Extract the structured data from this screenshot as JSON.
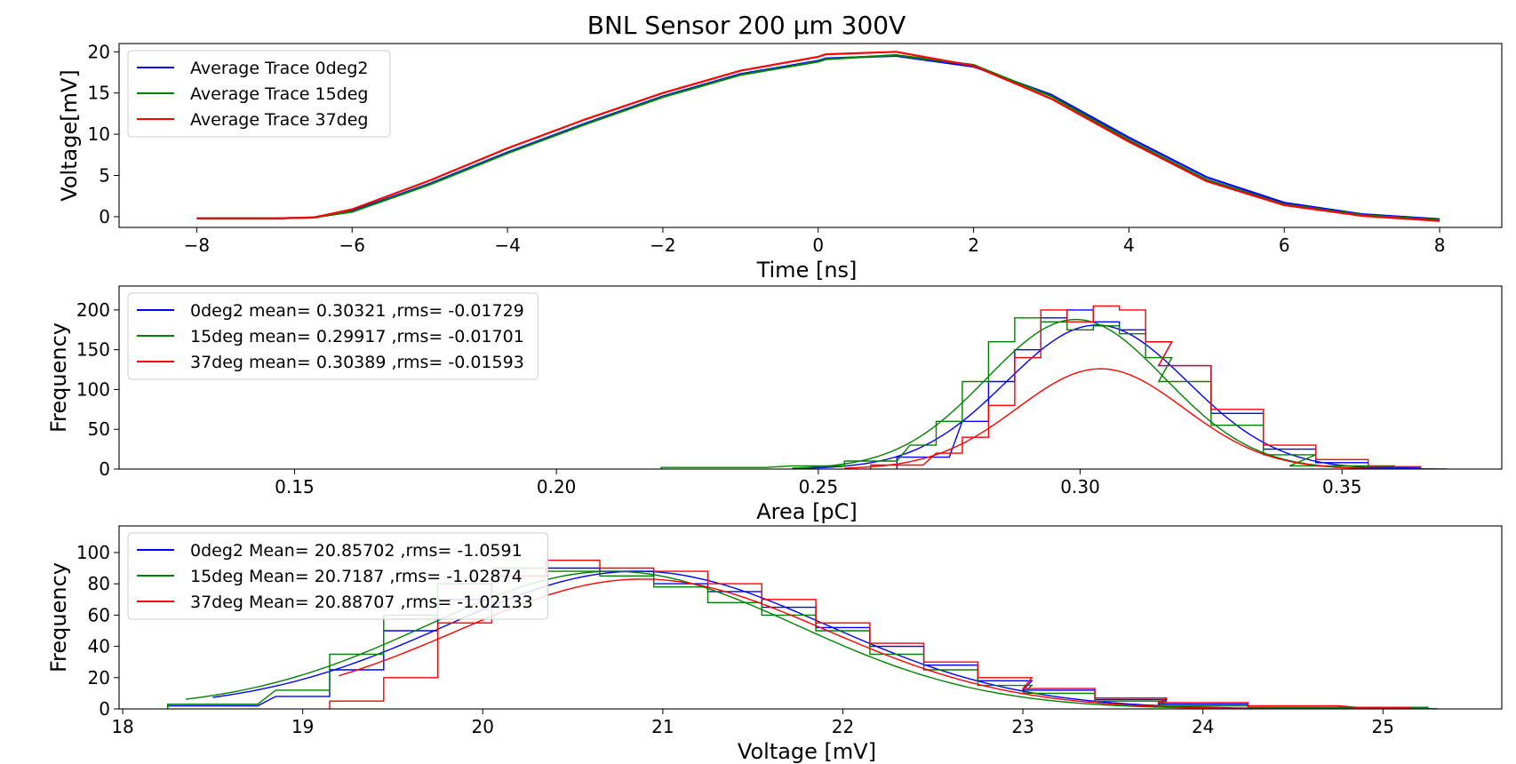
{
  "title": "BNL Sensor 200 µm 300V",
  "colors": {
    "blue": "#0000ff",
    "green": "#008000",
    "red": "#ff0000"
  },
  "chart_data": [
    {
      "type": "line",
      "xlabel": "Time [ns]",
      "ylabel": "Voltage[mV]",
      "xlim": [
        -9.0,
        8.8
      ],
      "ylim": [
        -1.3,
        21.0
      ],
      "xticks": [
        -8,
        -6,
        -4,
        -2,
        0,
        2,
        4,
        6,
        8
      ],
      "xtick_labels": [
        "−8",
        "−6",
        "−4",
        "−2",
        "0",
        "2",
        "4",
        "6",
        "8"
      ],
      "yticks": [
        0,
        5,
        10,
        15,
        20
      ],
      "ytick_labels": [
        "0",
        "5",
        "10",
        "15",
        "20"
      ],
      "legend_position": "top-left",
      "series": [
        {
          "name": "Average Trace 0deg2",
          "color": "#0000ff",
          "x": [
            -8,
            -7,
            -6.5,
            -6,
            -5,
            -4,
            -3,
            -2,
            -1,
            0,
            0.1,
            1,
            2,
            3,
            4,
            5,
            6,
            7,
            8
          ],
          "y": [
            -0.2,
            -0.2,
            -0.1,
            0.7,
            4.0,
            7.8,
            11.3,
            14.6,
            17.3,
            18.9,
            19.2,
            19.5,
            18.2,
            14.8,
            9.6,
            4.8,
            1.7,
            0.3,
            -0.3
          ]
        },
        {
          "name": "Average Trace 15deg",
          "color": "#008000",
          "x": [
            -8,
            -7,
            -6.5,
            -6,
            -5,
            -4,
            -3,
            -2,
            -1,
            0,
            0.1,
            1,
            2,
            3,
            4,
            5,
            6,
            7,
            8
          ],
          "y": [
            -0.2,
            -0.2,
            -0.1,
            0.6,
            3.9,
            7.7,
            11.2,
            14.5,
            17.2,
            18.8,
            19.1,
            19.6,
            18.4,
            14.6,
            9.3,
            4.5,
            1.5,
            0.2,
            -0.4
          ]
        },
        {
          "name": "Average Trace 37deg",
          "color": "#ff0000",
          "x": [
            -8,
            -7,
            -6.5,
            -6,
            -5,
            -4,
            -3,
            -2,
            -1,
            0,
            0.1,
            1,
            2,
            3,
            4,
            5,
            6,
            7,
            8
          ],
          "y": [
            -0.2,
            -0.2,
            -0.1,
            0.9,
            4.4,
            8.3,
            11.8,
            15.0,
            17.7,
            19.4,
            19.7,
            20.0,
            18.3,
            14.3,
            9.1,
            4.3,
            1.4,
            0.1,
            -0.5
          ]
        }
      ]
    },
    {
      "type": "histogram",
      "xlabel": "Area [pC]",
      "ylabel": "Frequency",
      "xlim": [
        0.1165,
        0.3805
      ],
      "ylim": [
        0,
        230
      ],
      "xticks": [
        0.15,
        0.2,
        0.25,
        0.3,
        0.35
      ],
      "xtick_labels": [
        "0.15",
        "0.20",
        "0.25",
        "0.30",
        "0.35"
      ],
      "yticks": [
        0,
        50,
        100,
        150,
        200
      ],
      "ytick_labels": [
        "0",
        "50",
        "100",
        "150",
        "200"
      ],
      "legend_position": "top-left",
      "series": [
        {
          "name": "0deg2 mean= 0.30321 ,rms= -0.01729",
          "color": "#0000ff",
          "hist": {
            "centers": [
              0.27,
              0.28,
              0.285,
              0.29,
              0.295,
              0.3,
              0.305,
              0.31,
              0.315,
              0.32,
              0.33,
              0.34,
              0.35,
              0.36
            ],
            "values": [
              15,
              60,
              110,
              150,
              190,
              200,
              185,
              175,
              160,
              130,
              70,
              25,
              8,
              2
            ]
          },
          "fit": {
            "mean": 0.30321,
            "sigma": 0.01729,
            "amp": 181,
            "xmin": 0.245,
            "xmax": 0.37
          }
        },
        {
          "name": "15deg mean= 0.29917 ,rms= -0.01701",
          "color": "#008000",
          "hist": {
            "centers": [
              0.23,
              0.25,
              0.26,
              0.27,
              0.275,
              0.28,
              0.285,
              0.29,
              0.295,
              0.3,
              0.305,
              0.31,
              0.315,
              0.32,
              0.33,
              0.34,
              0.35
            ],
            "values": [
              2,
              4,
              10,
              30,
              60,
              110,
              160,
              190,
              185,
              175,
              180,
              170,
              140,
              110,
              55,
              18,
              4
            ]
          },
          "fit": {
            "mean": 0.29917,
            "sigma": 0.01701,
            "amp": 188,
            "xmin": 0.245,
            "xmax": 0.365
          }
        },
        {
          "name": "37deg mean= 0.30389 ,rms= -0.01593",
          "color": "#ff0000",
          "hist": {
            "centers": [
              0.265,
              0.275,
              0.28,
              0.285,
              0.29,
              0.295,
              0.3,
              0.305,
              0.31,
              0.315,
              0.32,
              0.33,
              0.34,
              0.35,
              0.36
            ],
            "values": [
              5,
              20,
              40,
              80,
              140,
              200,
              185,
              205,
              200,
              160,
              130,
              75,
              30,
              12,
              3
            ]
          },
          "fit": {
            "mean": 0.30389,
            "sigma": 0.01593,
            "amp": 126,
            "xmin": 0.255,
            "xmax": 0.365
          }
        }
      ]
    },
    {
      "type": "histogram",
      "xlabel": "Voltage [mV]",
      "ylabel": "Frequency",
      "xlim": [
        17.98,
        25.66
      ],
      "ylim": [
        0,
        117
      ],
      "xticks": [
        18,
        19,
        20,
        21,
        22,
        23,
        24,
        25
      ],
      "xtick_labels": [
        "18",
        "19",
        "20",
        "21",
        "22",
        "23",
        "24",
        "25"
      ],
      "yticks": [
        0,
        20,
        40,
        60,
        80,
        100
      ],
      "ytick_labels": [
        "0",
        "20",
        "40",
        "60",
        "80",
        "100"
      ],
      "legend_position": "top-left",
      "series": [
        {
          "name": "0deg2 Mean= 20.85702 ,rms= -1.0591",
          "color": "#0000ff",
          "hist": {
            "centers": [
              18.5,
              19.0,
              19.3,
              19.6,
              19.9,
              20.2,
              20.5,
              20.8,
              21.1,
              21.4,
              21.7,
              22.0,
              22.3,
              22.6,
              22.9,
              23.2,
              23.6,
              24.0,
              24.5,
              25.0
            ],
            "values": [
              2,
              8,
              25,
              50,
              70,
              85,
              90,
              88,
              80,
              75,
              65,
              52,
              40,
              28,
              18,
              12,
              6,
              3,
              1,
              1
            ]
          },
          "fit": {
            "mean": 20.85702,
            "sigma": 1.0591,
            "amp": 88,
            "xmin": 18.5,
            "xmax": 25.3
          }
        },
        {
          "name": "15deg Mean= 20.7187 ,rms= -1.02874",
          "color": "#008000",
          "hist": {
            "centers": [
              18.5,
              19.0,
              19.3,
              19.6,
              19.9,
              20.2,
              20.5,
              20.8,
              21.1,
              21.4,
              21.7,
              22.0,
              22.3,
              22.6,
              22.9,
              23.2,
              23.6,
              24.0,
              24.5,
              25.0
            ],
            "values": [
              3,
              12,
              35,
              60,
              80,
              90,
              88,
              85,
              78,
              68,
              60,
              50,
              35,
              25,
              15,
              10,
              5,
              2,
              1,
              1
            ]
          },
          "fit": {
            "mean": 20.7187,
            "sigma": 1.02874,
            "amp": 88,
            "xmin": 18.35,
            "xmax": 25.3
          }
        },
        {
          "name": "37deg Mean= 20.88707 ,rms= -1.02133",
          "color": "#ff0000",
          "hist": {
            "centers": [
              19.3,
              19.6,
              19.9,
              20.2,
              20.5,
              20.8,
              21.1,
              21.4,
              21.7,
              22.0,
              22.3,
              22.6,
              22.9,
              23.2,
              23.6,
              24.0,
              24.5,
              25.0
            ],
            "values": [
              5,
              20,
              55,
              85,
              95,
              90,
              88,
              80,
              70,
              55,
              42,
              30,
              20,
              13,
              7,
              4,
              2,
              1
            ]
          },
          "fit": {
            "mean": 20.88707,
            "sigma": 1.02133,
            "amp": 83,
            "xmin": 19.2,
            "xmax": 25.3
          }
        }
      ]
    }
  ]
}
